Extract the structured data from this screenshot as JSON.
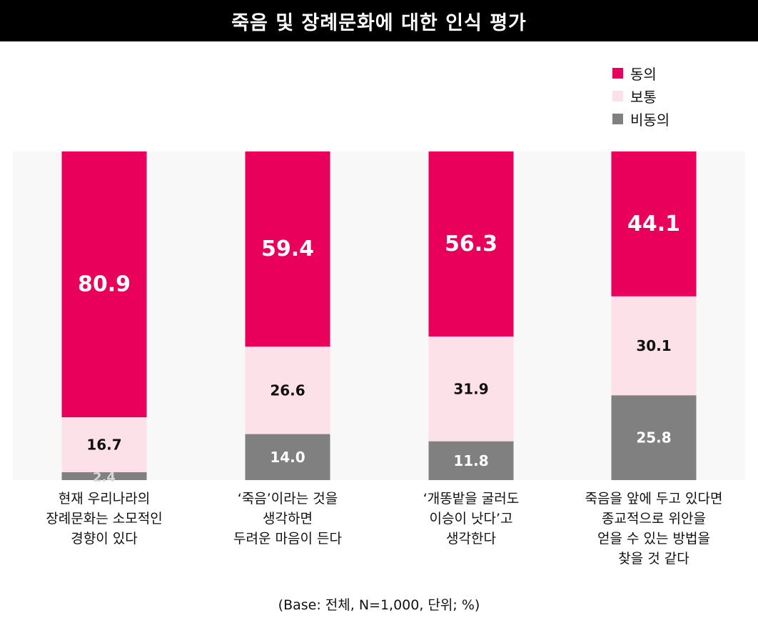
{
  "chart_data": {
    "type": "bar",
    "stacked": true,
    "title": "죽음 및 장례문화에 대한 인식 평가",
    "categories": [
      "현재 우리나라의\n장례문화는 소모적인\n경향이 있다",
      "‘죽음’이라는 것을\n생각하면\n두려운 마음이 든다",
      "‘개똥밭을 굴러도\n이승이 낫다’고\n생각한다",
      "죽음을 앞에 두고 있다면\n종교적으로 위안을\n얻을 수 있는 방법을\n찾을 것 같다"
    ],
    "series": [
      {
        "name": "동의",
        "color": "#E8005A",
        "label_color": "#ffffff",
        "values": [
          80.9,
          59.4,
          56.3,
          44.1
        ]
      },
      {
        "name": "보통",
        "color": "#FDE1E8",
        "label_color": "#111111",
        "values": [
          16.7,
          26.6,
          31.9,
          30.1
        ]
      },
      {
        "name": "비동의",
        "color": "#808080",
        "label_color": "#ffffff",
        "values": [
          2.4,
          14.0,
          11.8,
          25.8
        ]
      }
    ],
    "value_labels": [
      [
        "80.9",
        "59.4",
        "56.3",
        "44.1"
      ],
      [
        "16.7",
        "26.6",
        "31.9",
        "30.1"
      ],
      [
        "2.4",
        "14.0",
        "11.8",
        "25.8"
      ]
    ],
    "ylim": [
      0,
      100
    ],
    "legend_position": "top-right",
    "grid": false,
    "plot_background": "#F8F8F8"
  },
  "footnote": "(Base: 전체, N=1,000, 단위; %)"
}
